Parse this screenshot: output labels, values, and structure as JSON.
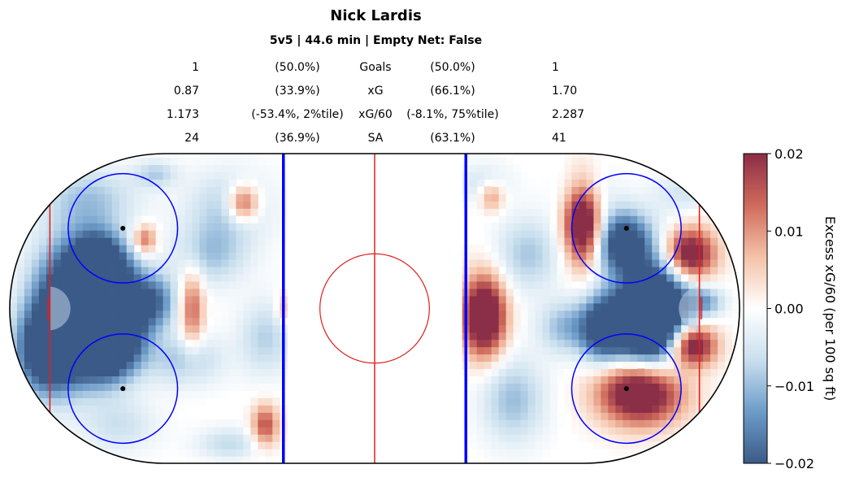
{
  "header": {
    "title": "Nick Lardis",
    "subtitle": "5v5 | 44.6 min | Empty Net: False"
  },
  "stats": [
    {
      "left_value": "1",
      "left_pct": "(50.0%)",
      "label": "Goals",
      "right_pct": "(50.0%)",
      "right_value": "1"
    },
    {
      "left_value": "0.87",
      "left_pct": "(33.9%)",
      "label": "xG",
      "right_pct": "(66.1%)",
      "right_value": "1.70"
    },
    {
      "left_value": "1.173",
      "left_pct": "(-53.4%, 2%tile)",
      "label": "xG/60",
      "right_pct": "(-8.1%, 75%tile)",
      "right_value": "2.287"
    },
    {
      "left_value": "24",
      "left_pct": "(36.9%)",
      "label": "SA",
      "right_pct": "(63.1%)",
      "right_value": "41"
    }
  ],
  "colorbar": {
    "label": "Excess xG/60 (per 100 sq ft)",
    "ticks": [
      "0.02",
      "0.01",
      "0.00",
      "−0.01",
      "−0.02"
    ],
    "min": -0.02,
    "max": 0.02,
    "colors": [
      "#3b5a87",
      "#6d9cc9",
      "#c9dfee",
      "#ffffff",
      "#f4c2a8",
      "#d06a5b",
      "#8b2e47"
    ]
  },
  "chart_data": {
    "type": "heatmap",
    "title": "Nick Lardis",
    "subtitle": "5v5 | 44.6 min | Empty Net: False",
    "value_range": [
      -0.02,
      0.02
    ],
    "rink": {
      "x_range": [
        -100,
        100
      ],
      "y_range": [
        -42.5,
        42.5
      ],
      "center_red_line_x": 0,
      "blue_lines_x": [
        -25,
        25
      ],
      "goal_lines_x": [
        -89,
        89
      ],
      "faceoff_circle_radius": 15,
      "faceoff_dots": [
        [
          -69,
          22
        ],
        [
          -69,
          -22
        ],
        [
          69,
          22
        ],
        [
          69,
          -22
        ]
      ],
      "center_circle_radius": 15,
      "crease_radius": 6
    },
    "blobs": [
      {
        "x": -84,
        "y": 0,
        "sx": 7,
        "sy": 12,
        "value": -0.03
      },
      {
        "x": -76,
        "y": 12,
        "sx": 5,
        "sy": 6,
        "value": -0.03
      },
      {
        "x": -74,
        "y": -10,
        "sx": 6,
        "sy": 7,
        "value": -0.028
      },
      {
        "x": -70,
        "y": 0,
        "sx": 6,
        "sy": 9,
        "value": -0.026
      },
      {
        "x": -90,
        "y": -12,
        "sx": 6,
        "sy": 8,
        "value": -0.024
      },
      {
        "x": -60,
        "y": 2,
        "sx": 4,
        "sy": 5,
        "value": -0.014
      },
      {
        "x": -52,
        "y": -14,
        "sx": 7,
        "sy": 5,
        "value": -0.009
      },
      {
        "x": -78,
        "y": 30,
        "sx": 9,
        "sy": 6,
        "value": -0.009
      },
      {
        "x": -40,
        "y": 28,
        "sx": 8,
        "sy": 7,
        "value": -0.008
      },
      {
        "x": -30,
        "y": -8,
        "sx": 5,
        "sy": 7,
        "value": -0.008
      },
      {
        "x": -45,
        "y": 15,
        "sx": 7,
        "sy": 6,
        "value": -0.009
      },
      {
        "x": -70,
        "y": -32,
        "sx": 7,
        "sy": 5,
        "value": -0.006
      },
      {
        "x": -60,
        "y": 37,
        "sx": 4,
        "sy": 2.5,
        "value": -0.008
      },
      {
        "x": -40,
        "y": -37,
        "sx": 6,
        "sy": 3,
        "value": -0.007
      },
      {
        "x": -36,
        "y": 29,
        "sx": 3,
        "sy": 3.5,
        "value": 0.018
      },
      {
        "x": -63,
        "y": 19,
        "sx": 2.3,
        "sy": 2.8,
        "value": 0.014
      },
      {
        "x": -50,
        "y": 0,
        "sx": 2.2,
        "sy": 8,
        "value": 0.014
      },
      {
        "x": -30,
        "y": -32,
        "sx": 2.5,
        "sy": 4,
        "value": 0.016
      },
      {
        "x": -25,
        "y": 0,
        "sx": 1.4,
        "sy": 3,
        "value": 0.008
      },
      {
        "x": 78,
        "y": 0,
        "sx": 6,
        "sy": 11,
        "value": -0.03
      },
      {
        "x": 68,
        "y": 18,
        "sx": 5,
        "sy": 6,
        "value": -0.026
      },
      {
        "x": 70,
        "y": -4,
        "sx": 7,
        "sy": 7,
        "value": -0.026
      },
      {
        "x": 62,
        "y": -6,
        "sx": 4,
        "sy": 6,
        "value": -0.016
      },
      {
        "x": 90,
        "y": 2,
        "sx": 4,
        "sy": 3,
        "value": -0.012
      },
      {
        "x": 42,
        "y": 15,
        "sx": 6,
        "sy": 7,
        "value": -0.009
      },
      {
        "x": 38,
        "y": -25,
        "sx": 6,
        "sy": 8,
        "value": -0.01
      },
      {
        "x": 52,
        "y": -5,
        "sx": 5,
        "sy": 5,
        "value": -0.01
      },
      {
        "x": 58,
        "y": 32,
        "sx": 5,
        "sy": 5,
        "value": -0.006
      },
      {
        "x": 30,
        "y": 34,
        "sx": 5,
        "sy": 4,
        "value": -0.006
      },
      {
        "x": 85,
        "y": 32,
        "sx": 6,
        "sy": 4,
        "value": -0.005
      },
      {
        "x": 30,
        "y": -2,
        "sx": 4,
        "sy": 7.5,
        "value": 0.032
      },
      {
        "x": 57,
        "y": 24,
        "sx": 3.5,
        "sy": 8,
        "value": 0.03
      },
      {
        "x": 73,
        "y": -23,
        "sx": 8,
        "sy": 6,
        "value": 0.03
      },
      {
        "x": 86,
        "y": 15,
        "sx": 5,
        "sy": 5,
        "value": 0.028
      },
      {
        "x": 87,
        "y": -10,
        "sx": 4.5,
        "sy": 4,
        "value": 0.028
      },
      {
        "x": 32,
        "y": 31,
        "sx": 2.5,
        "sy": 3,
        "value": 0.012
      }
    ]
  }
}
